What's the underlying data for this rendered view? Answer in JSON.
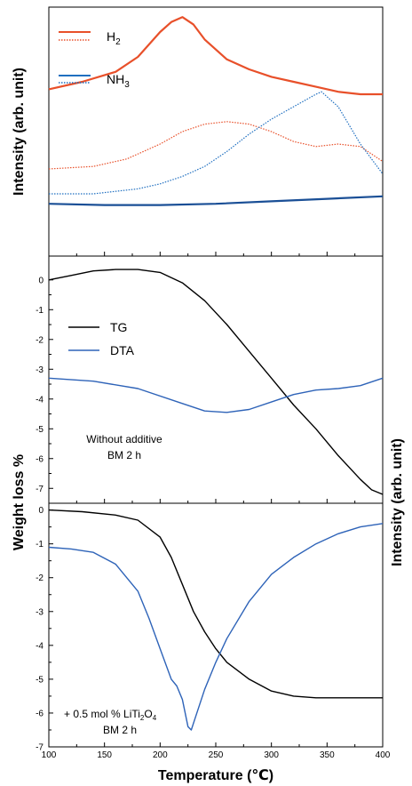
{
  "colors": {
    "h2": "#e8502a",
    "nh3": "#1f6fc0",
    "nh3_dark": "#1a4f96",
    "tg": "#000000",
    "dta": "#2e63b8"
  },
  "chart_data": [
    {
      "type": "line",
      "panel": "top",
      "ylabel": "Intensity (arb. unit)",
      "legend_placement": "top-left",
      "legend": [
        {
          "label": "H",
          "sub": "2"
        },
        {
          "label": "NH",
          "sub": "3"
        }
      ],
      "xlim": [
        100,
        400
      ],
      "series": [
        {
          "name": "H2",
          "style": "solid",
          "x": [
            100,
            130,
            160,
            180,
            200,
            210,
            220,
            230,
            240,
            260,
            280,
            300,
            320,
            340,
            360,
            380,
            400
          ],
          "y": [
            0.67,
            0.7,
            0.74,
            0.8,
            0.9,
            0.94,
            0.96,
            0.93,
            0.87,
            0.79,
            0.75,
            0.72,
            0.7,
            0.68,
            0.66,
            0.65,
            0.65
          ]
        },
        {
          "name": "H2",
          "style": "dotted",
          "x": [
            100,
            140,
            170,
            200,
            220,
            240,
            260,
            280,
            300,
            320,
            340,
            360,
            380,
            400
          ],
          "y": [
            0.35,
            0.36,
            0.39,
            0.45,
            0.5,
            0.53,
            0.54,
            0.53,
            0.5,
            0.46,
            0.44,
            0.45,
            0.44,
            0.38
          ]
        },
        {
          "name": "NH3",
          "style": "dotted",
          "x": [
            100,
            140,
            180,
            200,
            220,
            240,
            260,
            280,
            300,
            320,
            340,
            345,
            360,
            380,
            400
          ],
          "y": [
            0.25,
            0.25,
            0.27,
            0.29,
            0.32,
            0.36,
            0.42,
            0.49,
            0.55,
            0.6,
            0.65,
            0.66,
            0.6,
            0.45,
            0.33
          ]
        },
        {
          "name": "NH3",
          "style": "solid",
          "x": [
            100,
            150,
            200,
            250,
            300,
            350,
            400
          ],
          "y": [
            0.21,
            0.205,
            0.205,
            0.21,
            0.22,
            0.23,
            0.24
          ]
        }
      ]
    },
    {
      "type": "line",
      "panel": "middle",
      "ylabel": "Weight loss %",
      "ylim": [
        -7.5,
        0.8
      ],
      "yticks": [
        0,
        -1,
        -2,
        -3,
        -4,
        -5,
        -6,
        -7
      ],
      "legend_placement": "upper-left",
      "annotation": [
        "Without additive",
        "BM 2 h"
      ],
      "series": [
        {
          "name": "TG",
          "x": [
            100,
            120,
            140,
            160,
            180,
            200,
            220,
            240,
            260,
            280,
            300,
            320,
            340,
            360,
            380,
            390,
            400
          ],
          "y": [
            0.0,
            0.15,
            0.3,
            0.35,
            0.35,
            0.25,
            -0.1,
            -0.7,
            -1.5,
            -2.4,
            -3.3,
            -4.2,
            -5.0,
            -5.9,
            -6.7,
            -7.05,
            -7.2
          ]
        },
        {
          "name": "DTA",
          "x": [
            100,
            140,
            180,
            220,
            240,
            260,
            280,
            300,
            320,
            340,
            360,
            380,
            400
          ],
          "y": [
            -3.3,
            -3.4,
            -3.65,
            -4.15,
            -4.4,
            -4.45,
            -4.35,
            -4.1,
            -3.85,
            -3.7,
            -3.65,
            -3.55,
            -3.3
          ]
        }
      ]
    },
    {
      "type": "line",
      "panel": "bottom",
      "ylabel": "Weight loss %",
      "xlabel": "Temperature (℃)",
      "xlim": [
        100,
        400
      ],
      "xticks": [
        100,
        150,
        200,
        250,
        300,
        350,
        400
      ],
      "ylim": [
        -7,
        0.2
      ],
      "yticks": [
        0,
        -1,
        -2,
        -3,
        -4,
        -5,
        -6,
        -7
      ],
      "annotation": [
        "+ 0.5 mol % LiTi",
        "2",
        "O",
        "4",
        "BM 2 h"
      ],
      "series": [
        {
          "name": "TG",
          "x": [
            100,
            130,
            160,
            180,
            200,
            210,
            220,
            230,
            240,
            250,
            260,
            280,
            300,
            320,
            340,
            360,
            380,
            400
          ],
          "y": [
            0.0,
            -0.05,
            -0.15,
            -0.3,
            -0.8,
            -1.4,
            -2.2,
            -3.0,
            -3.6,
            -4.1,
            -4.5,
            -5.0,
            -5.35,
            -5.5,
            -5.55,
            -5.55,
            -5.55,
            -5.55
          ]
        },
        {
          "name": "DTA",
          "x": [
            100,
            120,
            140,
            160,
            180,
            190,
            200,
            210,
            215,
            220,
            225,
            228,
            232,
            240,
            250,
            260,
            280,
            300,
            320,
            340,
            360,
            380,
            400
          ],
          "y": [
            -1.1,
            -1.15,
            -1.25,
            -1.6,
            -2.4,
            -3.2,
            -4.1,
            -5.0,
            -5.2,
            -5.6,
            -6.4,
            -6.5,
            -6.1,
            -5.3,
            -4.5,
            -3.8,
            -2.7,
            -1.9,
            -1.4,
            -1.0,
            -0.7,
            -0.5,
            -0.4
          ]
        }
      ]
    },
    {
      "type": "line",
      "panel": "right-axis",
      "ylabel": "Intensity (arb. unit)"
    }
  ]
}
